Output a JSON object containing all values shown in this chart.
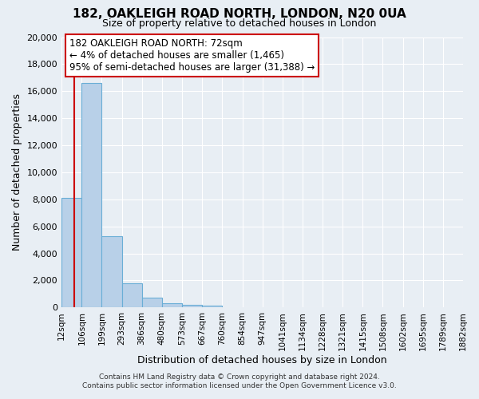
{
  "title": "182, OAKLEIGH ROAD NORTH, LONDON, N20 0UA",
  "subtitle": "Size of property relative to detached houses in London",
  "xlabel": "Distribution of detached houses by size in London",
  "ylabel": "Number of detached properties",
  "bin_labels": [
    "12sqm",
    "106sqm",
    "199sqm",
    "293sqm",
    "386sqm",
    "480sqm",
    "573sqm",
    "667sqm",
    "760sqm",
    "854sqm",
    "947sqm",
    "1041sqm",
    "1134sqm",
    "1228sqm",
    "1321sqm",
    "1415sqm",
    "1508sqm",
    "1602sqm",
    "1695sqm",
    "1789sqm",
    "1882sqm"
  ],
  "bin_edges": [
    12,
    106,
    199,
    293,
    386,
    480,
    573,
    667,
    760,
    854,
    947,
    1041,
    1134,
    1228,
    1321,
    1415,
    1508,
    1602,
    1695,
    1789,
    1882
  ],
  "bar_heights": [
    8100,
    16600,
    5300,
    1800,
    700,
    300,
    200,
    150,
    0,
    0,
    0,
    0,
    0,
    0,
    0,
    0,
    0,
    0,
    0,
    0
  ],
  "bar_color": "#b8d0e8",
  "bar_edge_color": "#6aaed6",
  "property_line_x": 72,
  "property_line_color": "#cc0000",
  "ylim": [
    0,
    20000
  ],
  "yticks": [
    0,
    2000,
    4000,
    6000,
    8000,
    10000,
    12000,
    14000,
    16000,
    18000,
    20000
  ],
  "annotation_title": "182 OAKLEIGH ROAD NORTH: 72sqm",
  "annotation_line1": "← 4% of detached houses are smaller (1,465)",
  "annotation_line2": "95% of semi-detached houses are larger (31,388) →",
  "annotation_box_color": "#ffffff",
  "annotation_box_edge_color": "#cc0000",
  "footer1": "Contains HM Land Registry data © Crown copyright and database right 2024.",
  "footer2": "Contains public sector information licensed under the Open Government Licence v3.0.",
  "background_color": "#e8eef4",
  "grid_color": "#ffffff"
}
